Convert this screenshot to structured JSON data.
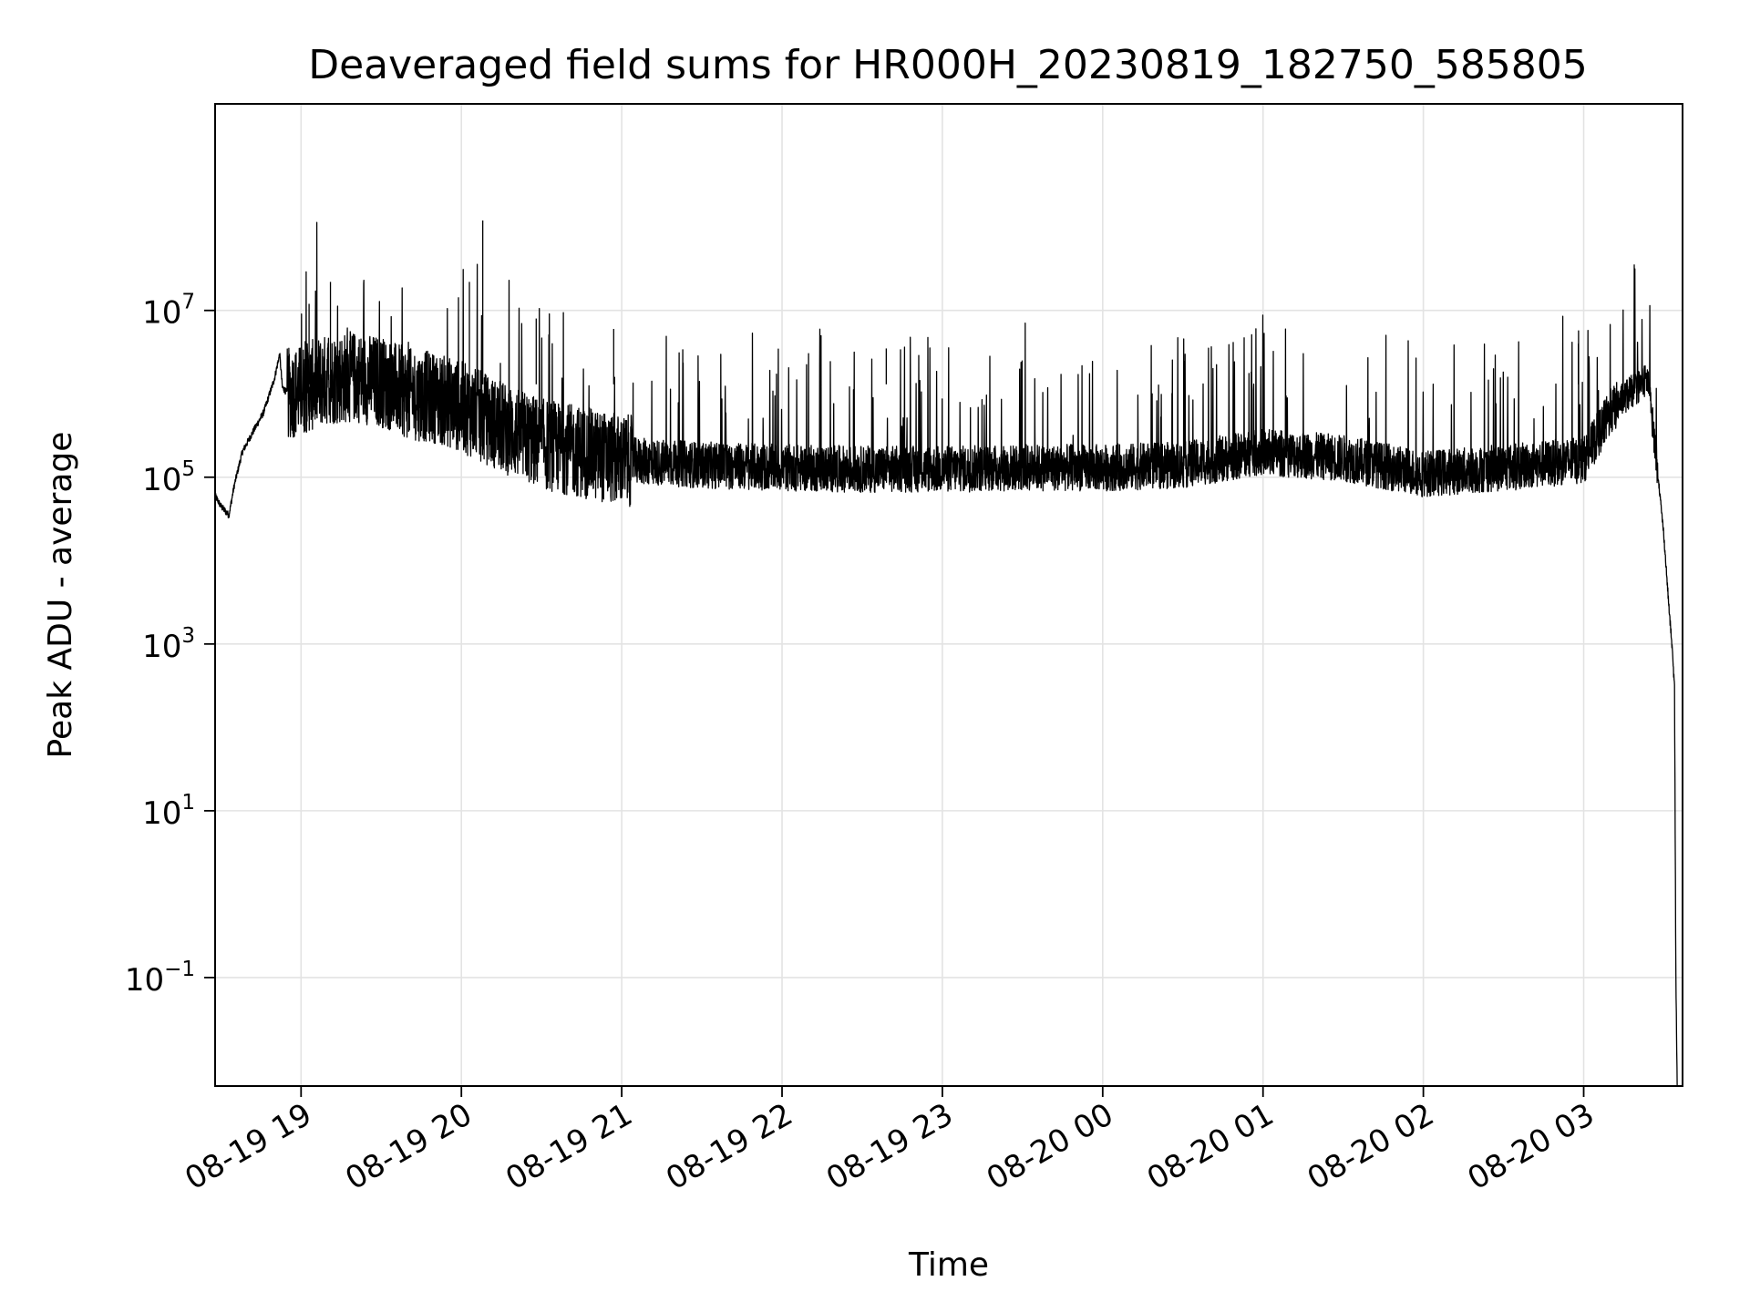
{
  "chart_data": {
    "type": "line",
    "title": "Deaveraged field sums for HR000H_20230819_182750_585805",
    "xlabel": "Time",
    "ylabel": "Peak ADU - average",
    "yscale": "log",
    "grid": true,
    "xlim": [
      "2023-08-19 18:27:50",
      "2023-08-20 03:37:00"
    ],
    "ylim": [
      0.005,
      3000000000
    ],
    "x_ticks": [
      {
        "value": "2023-08-19 19:00",
        "label": "08-19 19"
      },
      {
        "value": "2023-08-19 20:00",
        "label": "08-19 20"
      },
      {
        "value": "2023-08-19 21:00",
        "label": "08-19 21"
      },
      {
        "value": "2023-08-19 22:00",
        "label": "08-19 22"
      },
      {
        "value": "2023-08-19 23:00",
        "label": "08-19 23"
      },
      {
        "value": "2023-08-20 00:00",
        "label": "08-20 00"
      },
      {
        "value": "2023-08-20 01:00",
        "label": "08-20 01"
      },
      {
        "value": "2023-08-20 02:00",
        "label": "08-20 02"
      },
      {
        "value": "2023-08-20 03:00",
        "label": "08-20 03"
      }
    ],
    "y_ticks": [
      {
        "value": 0.1,
        "base": "10",
        "exp": "−1"
      },
      {
        "value": 10,
        "base": "10",
        "exp": "1"
      },
      {
        "value": 1000,
        "base": "10",
        "exp": "3"
      },
      {
        "value": 100000,
        "base": "10",
        "exp": "5"
      },
      {
        "value": 10000000,
        "base": "10",
        "exp": "7"
      }
    ],
    "series": [
      {
        "x": [
          "2023-08-19 18:27:50",
          "2023-08-19 18:30",
          "2023-08-19 18:33",
          "2023-08-19 18:35",
          "2023-08-19 18:38",
          "2023-08-19 18:42",
          "2023-08-19 18:46",
          "2023-08-19 18:50",
          "2023-08-19 18:52",
          "2023-08-19 18:53",
          "2023-08-19 18:55",
          "2023-08-19 19:00",
          "2023-08-19 19:05",
          "2023-08-19 19:10",
          "2023-08-19 19:20",
          "2023-08-19 19:30",
          "2023-08-19 19:40",
          "2023-08-19 19:50",
          "2023-08-19 20:00",
          "2023-08-19 20:15",
          "2023-08-19 20:30",
          "2023-08-19 20:45",
          "2023-08-19 21:00",
          "2023-08-19 21:30",
          "2023-08-19 22:00",
          "2023-08-19 22:30",
          "2023-08-19 23:00",
          "2023-08-19 23:30",
          "2023-08-20 00:00",
          "2023-08-20 00:30",
          "2023-08-20 01:00",
          "2023-08-20 01:30",
          "2023-08-20 02:00",
          "2023-08-20 02:30",
          "2023-08-20 03:00",
          "2023-08-20 03:10",
          "2023-08-20 03:15",
          "2023-08-20 03:20",
          "2023-08-20 03:24",
          "2023-08-20 03:27",
          "2023-08-20 03:30",
          "2023-08-20 03:32",
          "2023-08-20 03:33",
          "2023-08-20 03:34",
          "2023-08-20 03:34:30",
          "2023-08-20 03:35"
        ],
        "y": [
          60000,
          45000,
          35000,
          80000,
          200000,
          350000,
          600000,
          1500000,
          3000000,
          1200000,
          1000000,
          1100000,
          1300000,
          1500000,
          1600000,
          1400000,
          1000000,
          900000,
          700000,
          400000,
          250000,
          200000,
          160000,
          140000,
          130000,
          125000,
          125000,
          130000,
          130000,
          140000,
          200000,
          170000,
          110000,
          130000,
          160000,
          600000,
          900000,
          1200000,
          1500000,
          200000,
          20000,
          2500,
          1000,
          300,
          0.1,
          0.005
        ]
      }
    ],
    "spikes": [
      {
        "x": "2023-08-19 19:03",
        "y": 12000000
      },
      {
        "x": "2023-08-19 19:11",
        "y": 22000000
      },
      {
        "x": "2023-08-19 20:03",
        "y": 22000000
      },
      {
        "x": "2023-08-19 20:08",
        "y": 120000000
      },
      {
        "x": "2023-08-19 20:28",
        "y": 8000000
      },
      {
        "x": "2023-08-19 20:57",
        "y": 6000000
      },
      {
        "x": "2023-08-19 22:39",
        "y": 3500000
      },
      {
        "x": "2023-08-20 02:58",
        "y": 4000000
      }
    ]
  }
}
